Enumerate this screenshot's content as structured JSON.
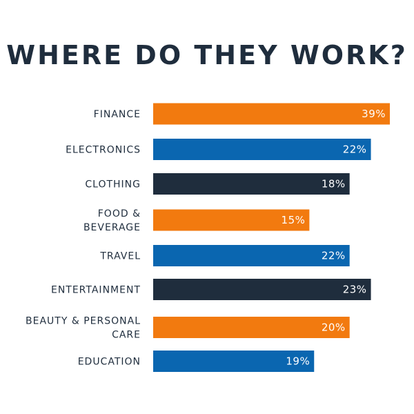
{
  "chart_data": {
    "type": "bar",
    "orientation": "horizontal",
    "title": "WHERE DO THEY WORK?",
    "categories": [
      "FINANCE",
      "ELECTRONICS",
      "CLOTHING",
      "FOOD & BEVERAGE",
      "TRAVEL",
      "ENTERTAINMENT",
      "BEAUTY & PERSONAL CARE",
      "EDUCATION"
    ],
    "category_lines": [
      [
        "FINANCE"
      ],
      [
        "ELECTRONICS"
      ],
      [
        "CLOTHING"
      ],
      [
        "FOOD &",
        "BEVERAGE"
      ],
      [
        "TRAVEL"
      ],
      [
        "ENTERTAINMENT"
      ],
      [
        "BEAUTY & PERSONAL",
        "CARE"
      ],
      [
        "EDUCATION"
      ]
    ],
    "values": [
      39,
      22,
      18,
      15,
      22,
      23,
      20,
      19
    ],
    "value_labels": [
      "39%",
      "22%",
      "18%",
      "15%",
      "22%",
      "23%",
      "20%",
      "19%"
    ],
    "bar_fill_fraction": [
      1.0,
      0.92,
      0.83,
      0.66,
      0.83,
      0.92,
      0.83,
      0.68
    ],
    "bar_colors": [
      "#f27a0f",
      "#0a66b0",
      "#1f2d3d",
      "#f27a0f",
      "#0a66b0",
      "#1f2d3d",
      "#f27a0f",
      "#0a66b0"
    ],
    "xlabel": "",
    "ylabel": "",
    "grid": false,
    "legend": "none"
  }
}
